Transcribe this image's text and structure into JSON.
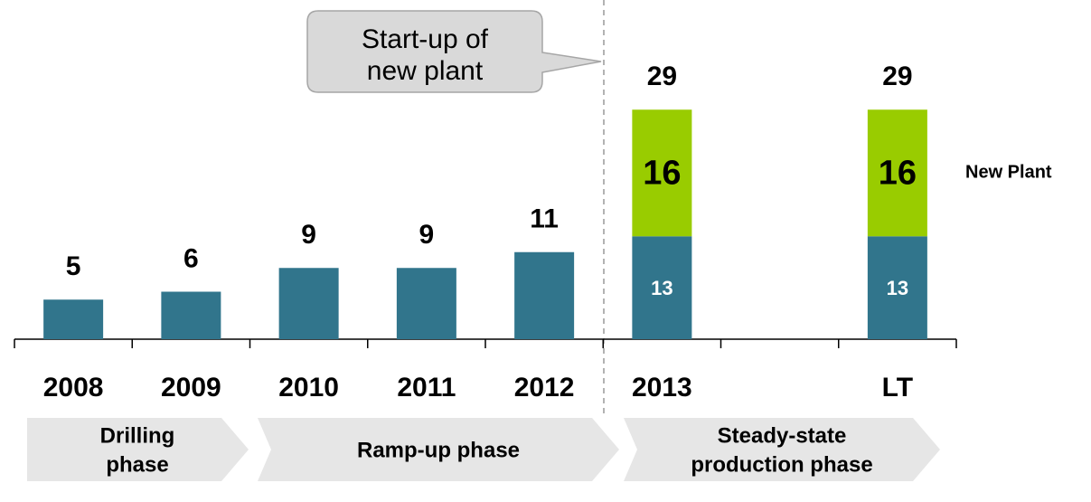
{
  "chart_data": {
    "type": "stacked_bar",
    "categories": [
      "2008",
      "2009",
      "2010",
      "2011",
      "2012",
      "2013",
      null,
      "LT"
    ],
    "series": [
      {
        "color": "#31758c",
        "values": [
          5,
          6,
          9,
          9,
          11,
          13,
          null,
          13
        ]
      },
      {
        "name": "New Plant",
        "color": "#99cc00",
        "values": [
          null,
          null,
          null,
          null,
          null,
          16,
          null,
          16
        ]
      }
    ],
    "totals": [
      null,
      null,
      null,
      null,
      null,
      29,
      null,
      29
    ],
    "ylim": [
      0,
      40
    ],
    "annotation": [
      "Start-up of",
      "new plant"
    ],
    "phases": [
      {
        "lines": [
          "Drilling",
          "phase"
        ]
      },
      {
        "lines": [
          "Ramp-up phase"
        ]
      },
      {
        "lines": [
          "Steady-state",
          "production phase"
        ]
      }
    ]
  }
}
